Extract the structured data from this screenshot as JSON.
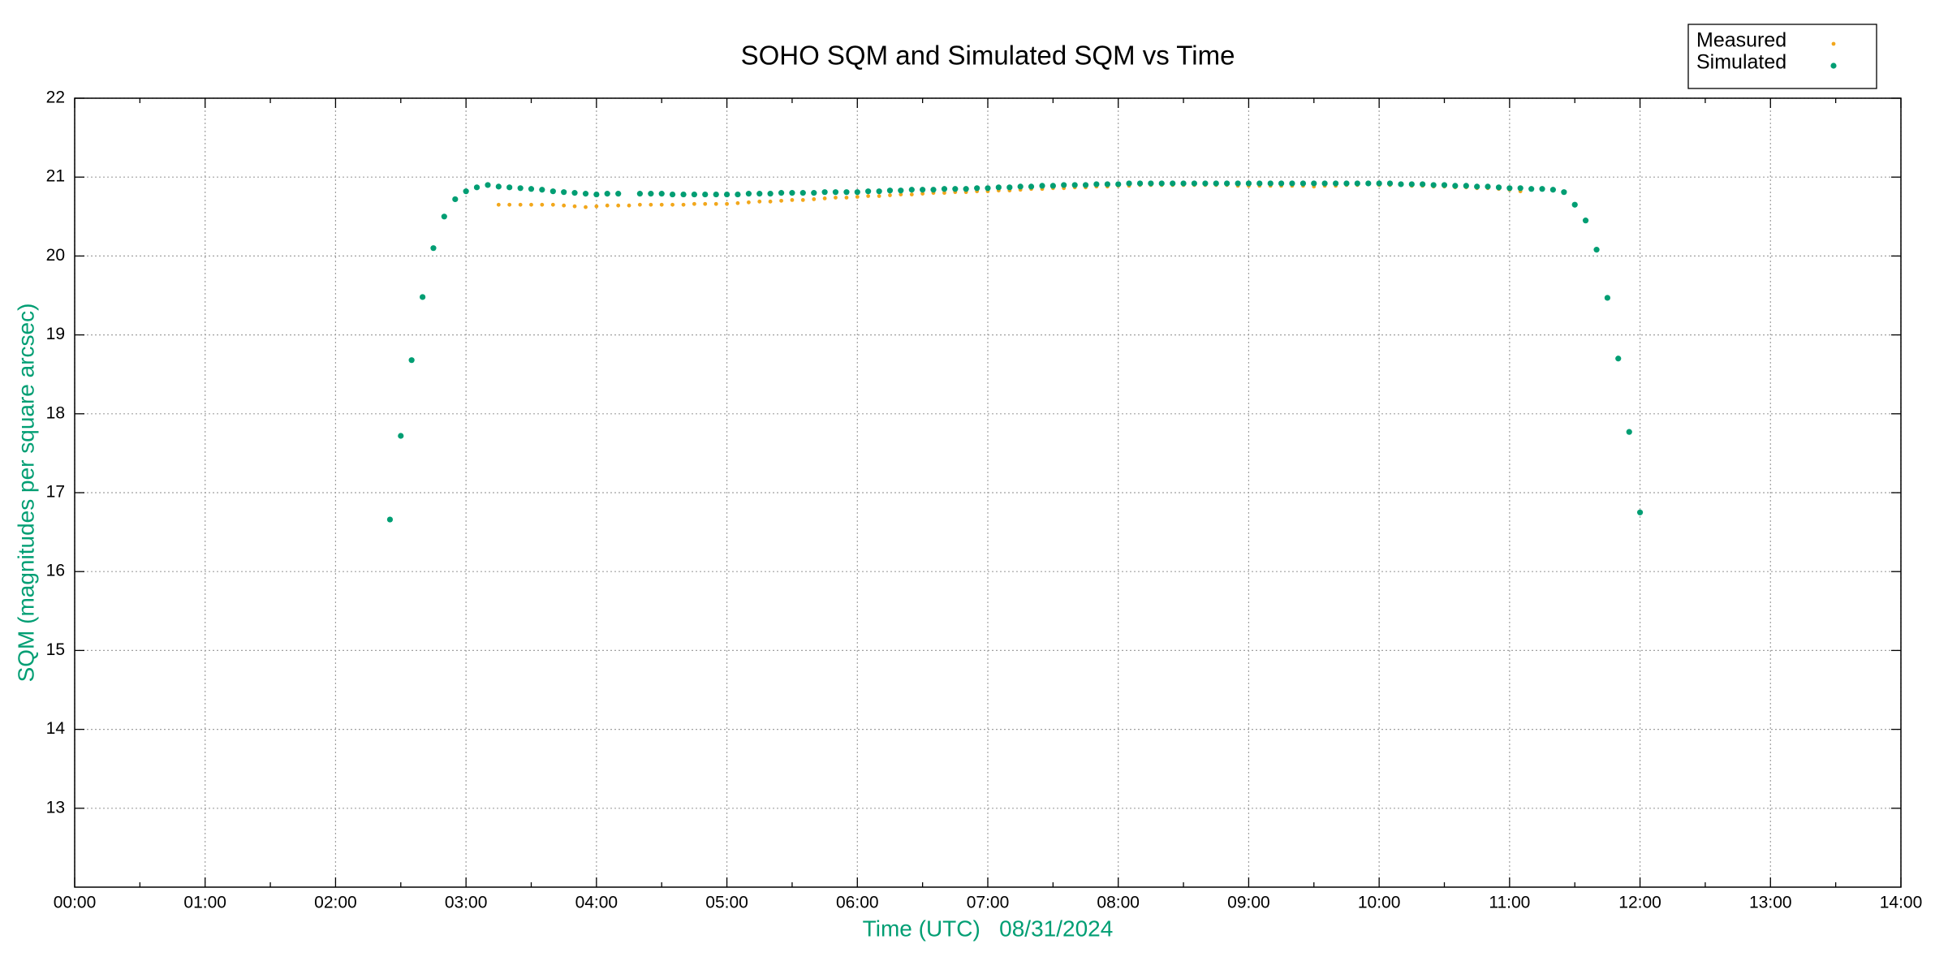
{
  "chart_data": {
    "type": "scatter",
    "title": "SOHO SQM and Simulated SQM vs Time",
    "xlabel": "Time (UTC)   08/31/2024",
    "ylabel": "SQM (magnitudes per square arcsec)",
    "xlim": [
      0,
      14
    ],
    "ylim": [
      12,
      22
    ],
    "xticks": [
      {
        "value": 0,
        "label": "00:00"
      },
      {
        "value": 1,
        "label": "01:00"
      },
      {
        "value": 2,
        "label": "02:00"
      },
      {
        "value": 3,
        "label": "03:00"
      },
      {
        "value": 4,
        "label": "04:00"
      },
      {
        "value": 5,
        "label": "05:00"
      },
      {
        "value": 6,
        "label": "06:00"
      },
      {
        "value": 7,
        "label": "07:00"
      },
      {
        "value": 8,
        "label": "08:00"
      },
      {
        "value": 9,
        "label": "09:00"
      },
      {
        "value": 10,
        "label": "10:00"
      },
      {
        "value": 11,
        "label": "11:00"
      },
      {
        "value": 12,
        "label": "12:00"
      },
      {
        "value": 13,
        "label": "13:00"
      },
      {
        "value": 14,
        "label": "14:00"
      }
    ],
    "yticks": [
      13,
      14,
      15,
      16,
      17,
      18,
      19,
      20,
      21,
      22
    ],
    "grid": true,
    "legend": "top-right",
    "series": [
      {
        "name": "Measured",
        "color": "#f2a71b",
        "x": [
          3.25,
          3.333,
          3.417,
          3.5,
          3.583,
          3.667,
          3.75,
          3.833,
          3.917,
          4.0,
          4.083,
          4.167,
          4.25,
          4.333,
          4.417,
          4.5,
          4.583,
          4.667,
          4.75,
          4.833,
          4.917,
          5.0,
          5.083,
          5.167,
          5.25,
          5.333,
          5.417,
          5.5,
          5.583,
          5.667,
          5.75,
          5.833,
          5.917,
          6.0,
          6.083,
          6.167,
          6.25,
          6.333,
          6.417,
          6.5,
          6.583,
          6.667,
          6.75,
          6.833,
          6.917,
          7.0,
          7.083,
          7.167,
          7.25,
          7.333,
          7.417,
          7.5,
          7.583,
          7.667,
          7.75,
          7.833,
          7.917,
          8.0,
          8.083,
          8.167,
          8.25,
          8.333,
          8.417,
          8.5,
          8.583,
          8.667,
          8.75,
          8.833,
          8.917,
          9.0,
          9.083,
          9.167,
          9.25,
          9.333,
          9.417,
          9.5,
          9.583,
          9.667,
          9.75,
          9.833,
          9.917,
          10.0,
          10.083,
          10.167,
          10.25,
          10.333,
          10.417,
          10.5,
          10.583,
          10.667,
          10.75,
          10.833,
          10.917,
          11.0,
          11.083
        ],
        "values": [
          20.65,
          20.65,
          20.65,
          20.65,
          20.65,
          20.65,
          20.64,
          20.63,
          20.62,
          20.63,
          20.64,
          20.64,
          20.64,
          20.65,
          20.65,
          20.65,
          20.65,
          20.65,
          20.66,
          20.66,
          20.66,
          20.66,
          20.67,
          20.68,
          20.69,
          20.69,
          20.7,
          20.71,
          20.71,
          20.72,
          20.73,
          20.74,
          20.74,
          20.75,
          20.76,
          20.76,
          20.77,
          20.78,
          20.78,
          20.79,
          20.8,
          20.8,
          20.81,
          20.81,
          20.82,
          20.82,
          20.83,
          20.83,
          20.84,
          20.85,
          20.85,
          20.86,
          20.86,
          20.87,
          20.87,
          20.88,
          20.88,
          20.89,
          20.89,
          20.9,
          20.9,
          20.9,
          20.9,
          20.9,
          20.9,
          20.9,
          20.9,
          20.9,
          20.89,
          20.89,
          20.89,
          20.89,
          20.89,
          20.89,
          20.89,
          20.88,
          20.89,
          20.89,
          20.9,
          20.9,
          20.91,
          20.9,
          20.9,
          20.9,
          20.89,
          20.89,
          20.88,
          20.88,
          20.87,
          20.87,
          20.86,
          20.86,
          20.85,
          20.84,
          20.82
        ]
      },
      {
        "name": "Simulated",
        "color": "#009e73",
        "x": [
          2.417,
          2.5,
          2.583,
          2.667,
          2.75,
          2.833,
          2.917,
          3.0,
          3.083,
          3.167,
          3.25,
          3.333,
          3.417,
          3.5,
          3.583,
          3.667,
          3.75,
          3.833,
          3.917,
          4.0,
          4.083,
          4.167,
          4.333,
          4.417,
          4.5,
          4.583,
          4.667,
          4.75,
          4.833,
          4.917,
          5.0,
          5.083,
          5.167,
          5.25,
          5.333,
          5.417,
          5.5,
          5.583,
          5.667,
          5.75,
          5.833,
          5.917,
          6.0,
          6.083,
          6.167,
          6.25,
          6.333,
          6.417,
          6.5,
          6.583,
          6.667,
          6.75,
          6.833,
          6.917,
          7.0,
          7.083,
          7.167,
          7.25,
          7.333,
          7.417,
          7.5,
          7.583,
          7.667,
          7.75,
          7.833,
          7.917,
          8.0,
          8.083,
          8.167,
          8.25,
          8.333,
          8.417,
          8.5,
          8.583,
          8.667,
          8.75,
          8.833,
          8.917,
          9.0,
          9.083,
          9.167,
          9.25,
          9.333,
          9.417,
          9.5,
          9.583,
          9.667,
          9.75,
          9.833,
          9.917,
          10.0,
          10.083,
          10.167,
          10.25,
          10.333,
          10.417,
          10.5,
          10.583,
          10.667,
          10.75,
          10.833,
          10.917,
          11.0,
          11.083,
          11.167,
          11.25,
          11.333,
          11.417,
          11.5,
          11.583,
          11.667,
          11.75,
          11.833,
          11.917,
          12.0
        ],
        "values": [
          16.66,
          17.72,
          18.68,
          19.48,
          20.1,
          20.5,
          20.72,
          20.82,
          20.87,
          20.9,
          20.88,
          20.87,
          20.86,
          20.85,
          20.84,
          20.82,
          20.81,
          20.8,
          20.79,
          20.78,
          20.79,
          20.79,
          20.79,
          20.79,
          20.79,
          20.78,
          20.78,
          20.78,
          20.78,
          20.78,
          20.78,
          20.78,
          20.79,
          20.79,
          20.79,
          20.8,
          20.8,
          20.8,
          20.8,
          20.81,
          20.81,
          20.81,
          20.81,
          20.82,
          20.82,
          20.83,
          20.83,
          20.84,
          20.84,
          20.84,
          20.85,
          20.85,
          20.85,
          20.86,
          20.86,
          20.87,
          20.87,
          20.88,
          20.88,
          20.89,
          20.89,
          20.9,
          20.9,
          20.9,
          20.91,
          20.91,
          20.91,
          20.92,
          20.92,
          20.92,
          20.92,
          20.92,
          20.92,
          20.92,
          20.92,
          20.92,
          20.92,
          20.92,
          20.92,
          20.92,
          20.92,
          20.92,
          20.92,
          20.92,
          20.92,
          20.92,
          20.92,
          20.92,
          20.92,
          20.92,
          20.92,
          20.92,
          20.91,
          20.91,
          20.91,
          20.9,
          20.9,
          20.89,
          20.89,
          20.88,
          20.88,
          20.87,
          20.86,
          20.86,
          20.85,
          20.85,
          20.84,
          20.81,
          20.65,
          20.45,
          20.08,
          19.47,
          18.7,
          17.77,
          16.75
        ]
      }
    ]
  }
}
